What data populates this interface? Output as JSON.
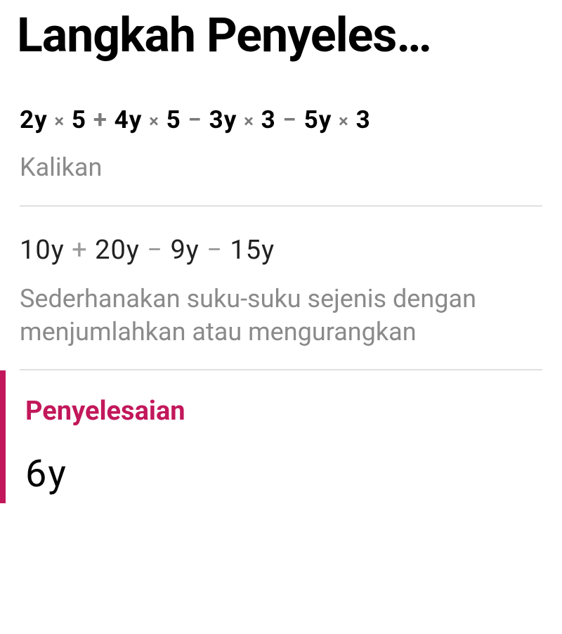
{
  "page": {
    "title": "Langkah Penyeles…"
  },
  "step1": {
    "term1": "2y",
    "op1_times": "×",
    "num1": "5",
    "op_plus": "+",
    "term2": "4y",
    "op2_times": "×",
    "num2": "5",
    "op_minus1": "−",
    "term3": "3y",
    "op3_times": "×",
    "num3": "3",
    "op_minus2": "−",
    "term4": "5y",
    "op4_times": "×",
    "num4": "3",
    "description": "Kalikan"
  },
  "step2": {
    "term1": "10y",
    "op_plus": "+",
    "term2": "20y",
    "op_minus1": "−",
    "term3": "9y",
    "op_minus2": "−",
    "term4": "15y",
    "description": "Sederhanakan suku-suku sejenis dengan menjumlahkan atau mengurangkan"
  },
  "solution": {
    "heading": "Penyelesaian",
    "answer": "6y"
  },
  "colors": {
    "accent": "#c2185b",
    "text_primary": "#000000",
    "text_secondary": "#8a8a8a",
    "op_faded": "#7a7a7a",
    "divider": "#e0e0e0",
    "background": "#ffffff"
  },
  "typography": {
    "title_fontsize": 68,
    "expression_fontsize": 35,
    "description_fontsize": 36,
    "solution_heading_fontsize": 38,
    "solution_answer_fontsize": 54
  }
}
